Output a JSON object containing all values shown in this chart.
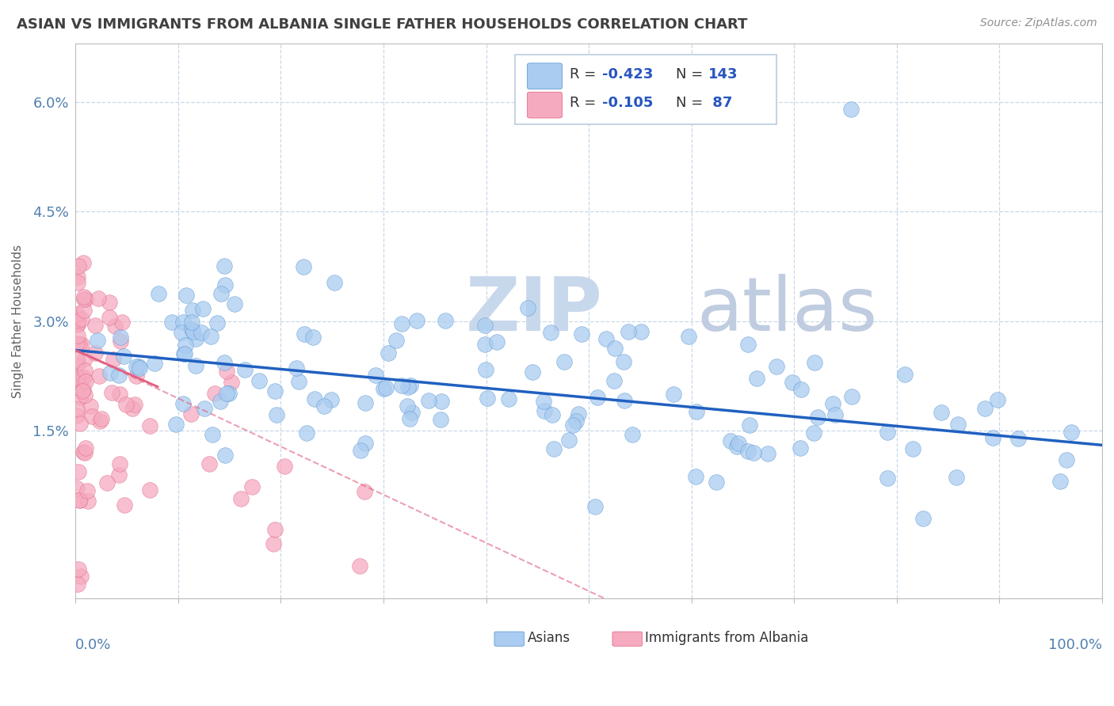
{
  "title": "ASIAN VS IMMIGRANTS FROM ALBANIA SINGLE FATHER HOUSEHOLDS CORRELATION CHART",
  "source": "Source: ZipAtlas.com",
  "ylabel": "Single Father Households",
  "y_ticks": [
    0.015,
    0.03,
    0.045,
    0.06
  ],
  "y_tick_labels": [
    "1.5%",
    "3.0%",
    "4.5%",
    "6.0%"
  ],
  "x_range": [
    0,
    1.0
  ],
  "y_range": [
    -0.008,
    0.068
  ],
  "r_asian": -0.423,
  "n_asian": 143,
  "r_albania": -0.105,
  "n_albania": 87,
  "legend_labels": [
    "Asians",
    "Immigrants from Albania"
  ],
  "color_asian": "#aaccf0",
  "color_albania": "#f5aabf",
  "color_asian_edge": "#5090d0",
  "color_albania_edge": "#e06080",
  "trendline_asian_color": "#2060c0",
  "trendline_albania_color": "#e06080",
  "watermark_zip_color": "#c8d8ec",
  "watermark_atlas_color": "#c0cce0",
  "background_color": "#ffffff",
  "grid_color": "#c8d8e8",
  "title_color": "#404040",
  "axis_label_color": "#5080b0",
  "legend_r_color": "#2855c0",
  "legend_n_color": "#2855c0",
  "source_color": "#909090"
}
